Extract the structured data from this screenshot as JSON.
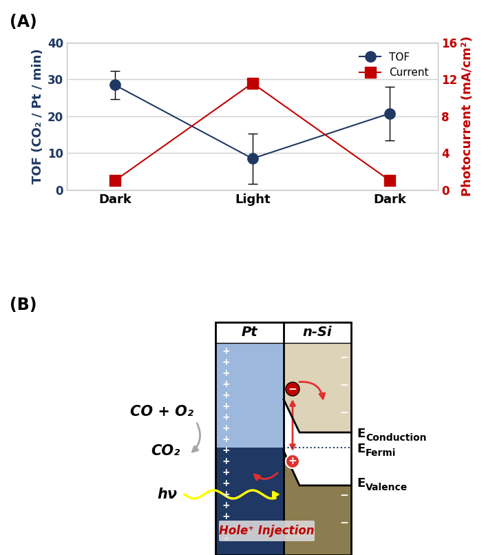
{
  "chart_data": {
    "type": "line",
    "label": "(A)",
    "categories": [
      "Dark",
      "Light",
      "Dark"
    ],
    "ylabel": "TOF (CO₂ / Pt / min)",
    "y2label": "Photocurrent (mA/cm²)",
    "ylim": [
      0,
      40
    ],
    "yticks": [
      0,
      10,
      20,
      30,
      40
    ],
    "y2lim": [
      0,
      16
    ],
    "y2ticks": [
      0,
      4,
      8,
      12,
      16
    ],
    "grid": true,
    "legend": "upper right",
    "series": [
      {
        "name": "TOF",
        "color": "#1f3864",
        "marker": "circle",
        "values": [
          28.5,
          8.5,
          20.8
        ],
        "errors": [
          3.8,
          6.8,
          7.3
        ]
      },
      {
        "name": "Current",
        "color": "#c00000",
        "marker": "square",
        "axis": "y2",
        "values": [
          1.0,
          11.6,
          1.0
        ]
      }
    ]
  },
  "diagram": {
    "label": "(B)",
    "metal": "Pt",
    "semiconductor": "n-Si",
    "reactants": "CO + O₂",
    "product": "CO₂",
    "light": "hν",
    "process": "Hole⁺ Injection",
    "metal_charge": "+",
    "semiconductor_charge": "−",
    "electron": "−",
    "hole": "+",
    "levels": [
      {
        "main": "E",
        "sub": "Conduction"
      },
      {
        "main": "E",
        "sub": "Fermi"
      },
      {
        "main": "E",
        "sub": "Valence"
      }
    ]
  }
}
